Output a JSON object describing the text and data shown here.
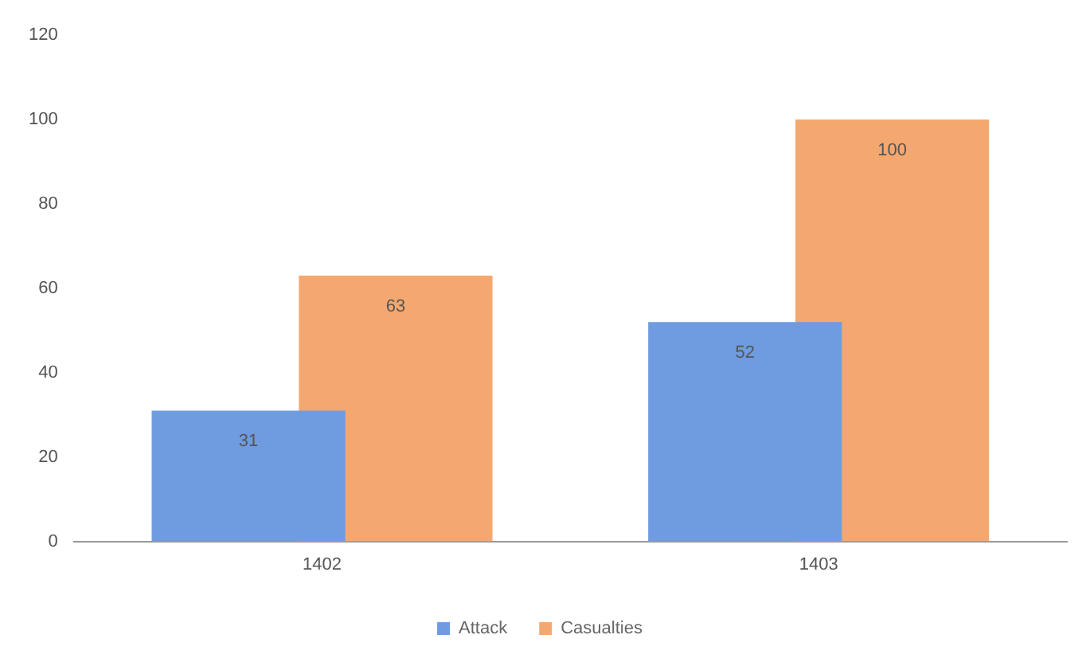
{
  "chart_data": {
    "type": "bar",
    "categories": [
      "1402",
      "1403"
    ],
    "series": [
      {
        "name": "Attack",
        "color": "#6f9be0",
        "values": [
          31,
          52
        ]
      },
      {
        "name": "Casualties",
        "color": "#f39c5c",
        "values": [
          63,
          100
        ]
      }
    ],
    "ylim": [
      0,
      120
    ],
    "yticks": [
      0,
      20,
      40,
      60,
      80,
      100,
      120
    ],
    "grid": false,
    "legend": "bottom",
    "data_labels": true
  }
}
